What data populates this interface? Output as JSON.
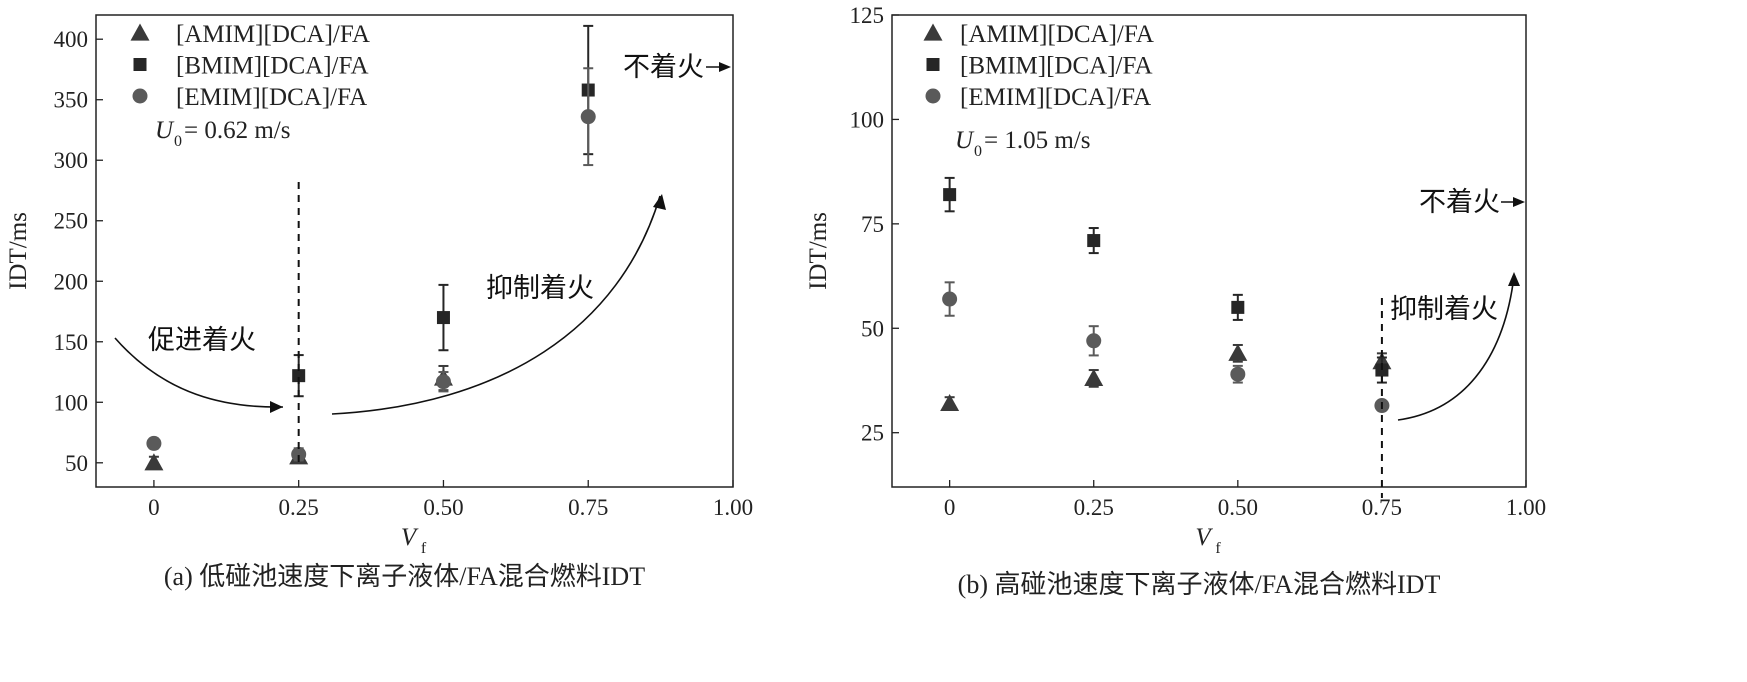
{
  "chart_data": [
    {
      "type": "scatter",
      "panel_caption": "(a) 低碰池速度下离子液体/FA混合燃料IDT",
      "xlabel": "V",
      "xlabel_sub": "f",
      "ylabel": "IDT/ms",
      "xlim": [
        -0.1,
        1.0
      ],
      "ylim": [
        30,
        420
      ],
      "xticks": [
        0,
        0.25,
        0.5,
        0.75,
        1.0
      ],
      "xtick_labels": [
        "0",
        "0.25",
        "0.50",
        "0.75",
        "1.00"
      ],
      "yticks": [
        50,
        100,
        150,
        200,
        250,
        300,
        350,
        400
      ],
      "ytick_labels": [
        "50",
        "100",
        "150",
        "200",
        "250",
        "300",
        "350",
        "400"
      ],
      "velocity_label": {
        "sym": "U",
        "sub": "0",
        "text": " = 0.62 m/s"
      },
      "series": [
        {
          "name": "[AMIM][DCA]/FA",
          "marker": "triangle",
          "color": "#3a3a3a",
          "x": [
            0,
            0.25,
            0.5
          ],
          "y": [
            50,
            55,
            120
          ],
          "err": [
            5,
            5,
            10
          ]
        },
        {
          "name": "[BMIM][DCA]/FA",
          "marker": "square",
          "color": "#262626",
          "x": [
            0.25,
            0.5,
            0.75
          ],
          "y": [
            122,
            170,
            358
          ],
          "err": [
            17,
            27,
            53
          ]
        },
        {
          "name": "[EMIM][DCA]/FA",
          "marker": "circle",
          "color": "#5a5a5a",
          "x": [
            0,
            0.25,
            0.5,
            0.75
          ],
          "y": [
            66,
            57,
            117,
            336
          ],
          "err": [
            4,
            5,
            8,
            40
          ]
        }
      ],
      "annotations": {
        "promote": "促进着火",
        "suppress": "抑制着火",
        "no_ignition": "不着火"
      },
      "dashed_x": 0.25
    },
    {
      "type": "scatter",
      "panel_caption": "(b) 高碰池速度下离子液体/FA混合燃料IDT",
      "xlabel": "V",
      "xlabel_sub": "f",
      "ylabel": "IDT/ms",
      "xlim": [
        -0.1,
        1.0
      ],
      "ylim": [
        12,
        125
      ],
      "xticks": [
        0,
        0.25,
        0.5,
        0.75,
        1.0
      ],
      "xtick_labels": [
        "0",
        "0.25",
        "0.50",
        "0.75",
        "1.00"
      ],
      "yticks": [
        25,
        50,
        75,
        100,
        125
      ],
      "ytick_labels": [
        "25",
        "50",
        "75",
        "100",
        "125"
      ],
      "velocity_label": {
        "sym": "U",
        "sub": "0",
        "text": " = 1.05 m/s"
      },
      "series": [
        {
          "name": "[AMIM][DCA]/FA",
          "marker": "triangle",
          "color": "#3a3a3a",
          "x": [
            0,
            0.25,
            0.5,
            0.75
          ],
          "y": [
            32,
            38,
            44,
            42
          ],
          "err": [
            1.5,
            2,
            2,
            2
          ]
        },
        {
          "name": "[BMIM][DCA]/FA",
          "marker": "square",
          "color": "#262626",
          "x": [
            0,
            0.25,
            0.5,
            0.75
          ],
          "y": [
            82,
            71,
            55,
            40
          ],
          "err": [
            4,
            3,
            3,
            3
          ]
        },
        {
          "name": "[EMIM][DCA]/FA",
          "marker": "circle",
          "color": "#5a5a5a",
          "x": [
            0,
            0.25,
            0.5,
            0.75
          ],
          "y": [
            57,
            47,
            39,
            31.5
          ],
          "err": [
            4,
            3.5,
            2,
            0
          ]
        }
      ],
      "annotations": {
        "suppress": "抑制着火",
        "no_ignition": "不着火"
      },
      "dashed_x": 0.75
    }
  ]
}
